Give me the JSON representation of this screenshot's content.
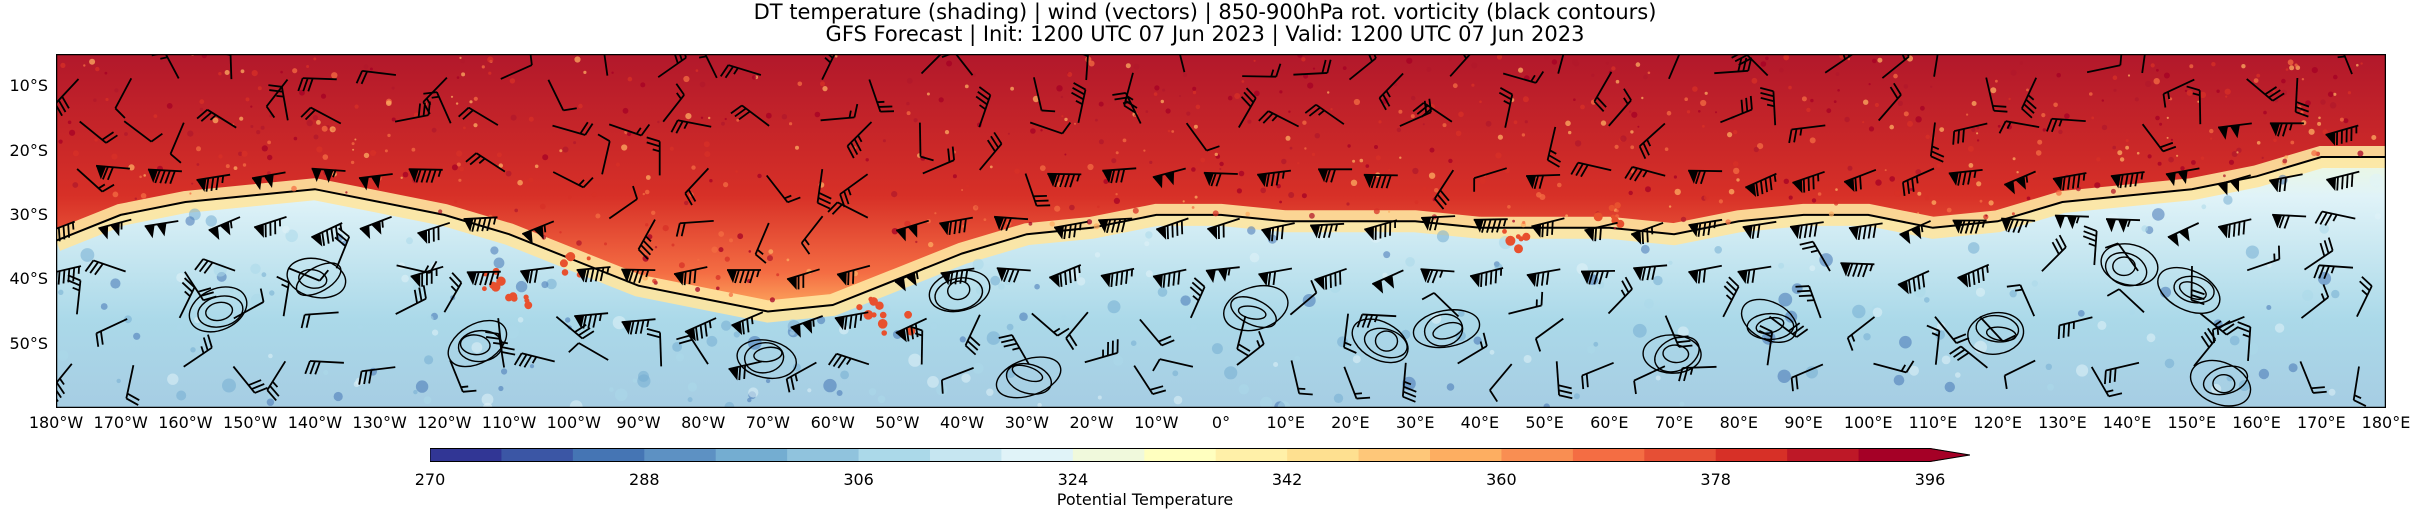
{
  "title": {
    "line1": "DT temperature (shading) | wind (vectors) | 850-900hPa rot. vorticity (black contours)",
    "line2": "GFS Forecast | Init: 1200 UTC 07 Jun 2023 | Valid: 1200 UTC 07 Jun 2023"
  },
  "map": {
    "lon_range": [
      -180,
      180
    ],
    "lat_range": [
      -60,
      -5
    ],
    "lat_ticks": [
      {
        "lat": -10,
        "label": "10°S"
      },
      {
        "lat": -20,
        "label": "20°S"
      },
      {
        "lat": -30,
        "label": "30°S"
      },
      {
        "lat": -40,
        "label": "40°S"
      },
      {
        "lat": -50,
        "label": "50°S"
      }
    ],
    "lon_ticks": [
      {
        "lon": -180,
        "label": "180°W"
      },
      {
        "lon": -170,
        "label": "170°W"
      },
      {
        "lon": -160,
        "label": "160°W"
      },
      {
        "lon": -150,
        "label": "150°W"
      },
      {
        "lon": -140,
        "label": "140°W"
      },
      {
        "lon": -130,
        "label": "130°W"
      },
      {
        "lon": -120,
        "label": "120°W"
      },
      {
        "lon": -110,
        "label": "110°W"
      },
      {
        "lon": -100,
        "label": "100°W"
      },
      {
        "lon": -90,
        "label": "90°W"
      },
      {
        "lon": -80,
        "label": "80°W"
      },
      {
        "lon": -70,
        "label": "70°W"
      },
      {
        "lon": -60,
        "label": "60°W"
      },
      {
        "lon": -50,
        "label": "50°W"
      },
      {
        "lon": -40,
        "label": "40°W"
      },
      {
        "lon": -30,
        "label": "30°W"
      },
      {
        "lon": -20,
        "label": "20°W"
      },
      {
        "lon": -10,
        "label": "10°W"
      },
      {
        "lon": 0,
        "label": "0°"
      },
      {
        "lon": 10,
        "label": "10°E"
      },
      {
        "lon": 20,
        "label": "20°E"
      },
      {
        "lon": 30,
        "label": "30°E"
      },
      {
        "lon": 40,
        "label": "40°E"
      },
      {
        "lon": 50,
        "label": "50°E"
      },
      {
        "lon": 60,
        "label": "60°E"
      },
      {
        "lon": 70,
        "label": "70°E"
      },
      {
        "lon": 80,
        "label": "80°E"
      },
      {
        "lon": 90,
        "label": "90°E"
      },
      {
        "lon": 100,
        "label": "100°E"
      },
      {
        "lon": 110,
        "label": "110°E"
      },
      {
        "lon": 120,
        "label": "120°E"
      },
      {
        "lon": 130,
        "label": "130°E"
      },
      {
        "lon": 140,
        "label": "140°E"
      },
      {
        "lon": 150,
        "label": "150°E"
      },
      {
        "lon": 160,
        "label": "160°E"
      },
      {
        "lon": 170,
        "label": "170°E"
      },
      {
        "lon": 180,
        "label": "180°E"
      }
    ],
    "theta_boundary": [
      [
        -180,
        -34
      ],
      [
        -170,
        -30
      ],
      [
        -160,
        -28
      ],
      [
        -150,
        -27
      ],
      [
        -140,
        -26
      ],
      [
        -130,
        -28
      ],
      [
        -120,
        -30
      ],
      [
        -110,
        -33
      ],
      [
        -100,
        -37
      ],
      [
        -90,
        -41
      ],
      [
        -80,
        -43
      ],
      [
        -70,
        -45
      ],
      [
        -60,
        -44
      ],
      [
        -50,
        -40
      ],
      [
        -40,
        -36
      ],
      [
        -30,
        -33
      ],
      [
        -20,
        -32
      ],
      [
        -10,
        -30
      ],
      [
        0,
        -30
      ],
      [
        10,
        -31
      ],
      [
        20,
        -31
      ],
      [
        30,
        -31
      ],
      [
        40,
        -32
      ],
      [
        50,
        -32
      ],
      [
        60,
        -32
      ],
      [
        70,
        -33
      ],
      [
        80,
        -31
      ],
      [
        90,
        -30
      ],
      [
        100,
        -30
      ],
      [
        110,
        -32
      ],
      [
        120,
        -31
      ],
      [
        130,
        -28
      ],
      [
        140,
        -27
      ],
      [
        150,
        -26
      ],
      [
        160,
        -24
      ],
      [
        170,
        -21
      ],
      [
        180,
        -21
      ]
    ]
  },
  "colorbar": {
    "label": "Potential Temperature",
    "min": 270,
    "max": 396,
    "ticks": [
      "270",
      "288",
      "306",
      "324",
      "342",
      "360",
      "378",
      "396"
    ],
    "extend": "max",
    "colormap": [
      "#313695",
      "#4575b4",
      "#74add1",
      "#abd9e9",
      "#e0f3f8",
      "#ffffbf",
      "#fee090",
      "#fdae61",
      "#f46d43",
      "#d73027",
      "#a50026"
    ]
  }
}
